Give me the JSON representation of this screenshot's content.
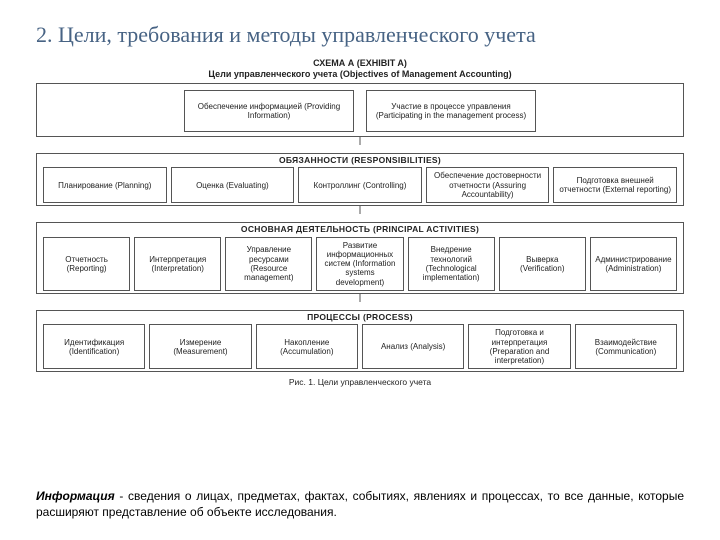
{
  "slide": {
    "title": "2. Цели, требования и методы управленческого учета"
  },
  "diagram": {
    "colors": {
      "border": "#555555",
      "text": "#222222",
      "background": "#ffffff",
      "titleColor": "#476384"
    },
    "fonts": {
      "titleFamily": "Times New Roman",
      "bodyFamily": "Arial",
      "boxSizePt": 8,
      "titleSizePt": 22
    },
    "schemaHeader1": "СХЕМА А (EXHIBIT A)",
    "schemaHeader2": "Цели управленческого учета (Objectives of Management Accounting)",
    "topBoxes": [
      "Обеспечение информацией (Providing Information)",
      "Участие в процессе управления (Participating in the management process)"
    ],
    "sections": [
      {
        "label": "ОБЯЗАННОСТИ (RESPONSIBILITIES)",
        "items": [
          "Планирование (Planning)",
          "Оценка (Evaluating)",
          "Контроллинг (Controlling)",
          "Обеспечение достоверности отчетности (Assuring Accountability)",
          "Подготовка внешней отчетности (External reporting)"
        ]
      },
      {
        "label": "ОСНОВНАЯ ДЕЯТЕЛЬНОСТЬ (PRINCIPAL ACTIVITIES)",
        "items": [
          "Отчетность (Reporting)",
          "Интерпретация (Interpretation)",
          "Управление ресурсами (Resource management)",
          "Развитие информационных систем (Information systems development)",
          "Внедрение технологий (Technological implementation)",
          "Выверка (Verification)",
          "Администри­рование (Administration)"
        ]
      },
      {
        "label": "ПРОЦЕССЫ (PROCESS)",
        "items": [
          "Идентификация (Identification)",
          "Измерение (Measurement)",
          "Накопление (Accumulation)",
          "Анализ (Analysis)",
          "Подготовка и интерпретация (Preparation and interpretation)",
          "Взаимодействие (Communication)"
        ]
      }
    ],
    "caption": "Рис.  1. Цели управленческого учета"
  },
  "footnote": {
    "term": "Информация",
    "text": " - сведения о лицах, предметах, фактах, событиях, явлениях и процессах, то все данные, которые расширяют представление об объекте исследования."
  }
}
